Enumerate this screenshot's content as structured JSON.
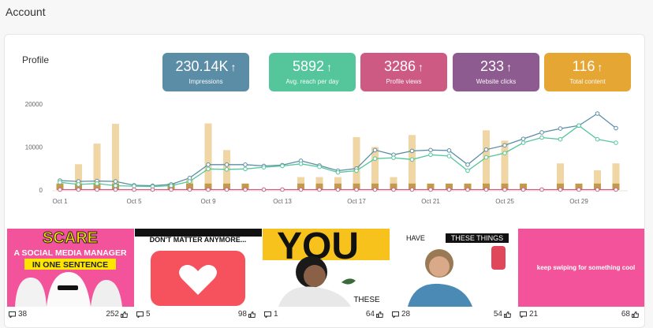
{
  "page": {
    "title": "Account"
  },
  "profile": {
    "label": "Profile"
  },
  "stats": [
    {
      "value": "230.14K",
      "label": "Impressions",
      "color": "#5b8ea6"
    },
    {
      "value": "5892",
      "label": "Avg. reach per day",
      "color": "#55c69b"
    },
    {
      "value": "3286",
      "label": "Profile views",
      "color": "#cd5a83"
    },
    {
      "value": "233",
      "label": "Website clicks",
      "color": "#8d5b8f"
    },
    {
      "value": "116",
      "label": "Total content",
      "color": "#e5a634"
    }
  ],
  "chart_data": {
    "type": "bar",
    "categories": [
      "Oct 1",
      "Oct 2",
      "Oct 3",
      "Oct 4",
      "Oct 5",
      "Oct 6",
      "Oct 7",
      "Oct 8",
      "Oct 9",
      "Oct 10",
      "Oct 11",
      "Oct 12",
      "Oct 13",
      "Oct 14",
      "Oct 15",
      "Oct 16",
      "Oct 17",
      "Oct 18",
      "Oct 19",
      "Oct 20",
      "Oct 21",
      "Oct 22",
      "Oct 23",
      "Oct 24",
      "Oct 25",
      "Oct 26",
      "Oct 27",
      "Oct 28",
      "Oct 29",
      "Oct 30",
      "Oct 31"
    ],
    "x_tick_labels": [
      "Oct 1",
      "Oct 5",
      "Oct 9",
      "Oct 13",
      "Oct 17",
      "Oct 21",
      "Oct 25",
      "Oct 29"
    ],
    "y_tick_labels": [
      "20000",
      "10000",
      "0"
    ],
    "ylim": [
      0,
      20000
    ],
    "bars": {
      "color": "#f0d6a4",
      "values": [
        1500,
        6000,
        10800,
        15400,
        0,
        0,
        0,
        2400,
        15500,
        9300,
        0,
        0,
        0,
        3000,
        3000,
        3000,
        12300,
        10000,
        3000,
        12800,
        0,
        0,
        0,
        13900,
        11500,
        0,
        0,
        6200,
        0,
        4600,
        6200
      ]
    },
    "small_bars": {
      "color": "#c39a4c",
      "values": [
        1500,
        1500,
        1500,
        1500,
        0,
        0,
        1500,
        1500,
        1500,
        1500,
        1500,
        0,
        0,
        1500,
        1500,
        1500,
        1500,
        1500,
        1500,
        1500,
        1500,
        1500,
        1500,
        1500,
        1500,
        1500,
        0,
        1500,
        1500,
        1500,
        1500
      ]
    },
    "series": [
      {
        "color": "#5b8ea6",
        "values": [
          2200,
          2000,
          2100,
          2000,
          1100,
          1000,
          1300,
          2800,
          5900,
          5900,
          5900,
          5600,
          5800,
          6800,
          5700,
          4500,
          5000,
          9300,
          8200,
          9100,
          9300,
          9200,
          5900,
          9400,
          10400,
          11900,
          13400,
          14300,
          15000,
          17800,
          14400
        ]
      },
      {
        "color": "#55c69b",
        "values": [
          1800,
          1300,
          1500,
          1000,
          900,
          800,
          1000,
          2000,
          4900,
          4800,
          4900,
          5300,
          5600,
          6100,
          5400,
          4100,
          4500,
          7300,
          7500,
          7100,
          8200,
          7900,
          4500,
          7600,
          8600,
          11000,
          12200,
          11800,
          15000,
          11800,
          11000
        ]
      },
      {
        "color": "#cd5a83",
        "values": [
          100,
          100,
          100,
          100,
          100,
          100,
          100,
          100,
          100,
          100,
          100,
          100,
          100,
          100,
          100,
          100,
          100,
          100,
          100,
          100,
          100,
          100,
          100,
          100,
          100,
          100,
          100,
          100,
          100,
          100,
          100
        ]
      }
    ]
  },
  "posts": [
    {
      "comments": "38",
      "likes": "252",
      "thumb_text": [
        "SCARE",
        "A SOCIAL MEDIA MANAGER",
        "IN ONE SENTENCE"
      ],
      "bg": "#f3539a"
    },
    {
      "comments": "5",
      "likes": "98",
      "thumb_text": [
        "DON'T MATTER ANYMORE..."
      ],
      "bg": "#ffffff"
    },
    {
      "comments": "1",
      "likes": "64",
      "thumb_text": [
        "YOU",
        "THESE"
      ],
      "bg": "#ffffff"
    },
    {
      "comments": "28",
      "likes": "54",
      "thumb_text": [
        "HAVE",
        "THESE THINGS"
      ],
      "bg": "#ffffff"
    },
    {
      "comments": "21",
      "likes": "68",
      "thumb_text": [
        "keep swiping for something cool"
      ],
      "bg": "#f3539a"
    }
  ]
}
